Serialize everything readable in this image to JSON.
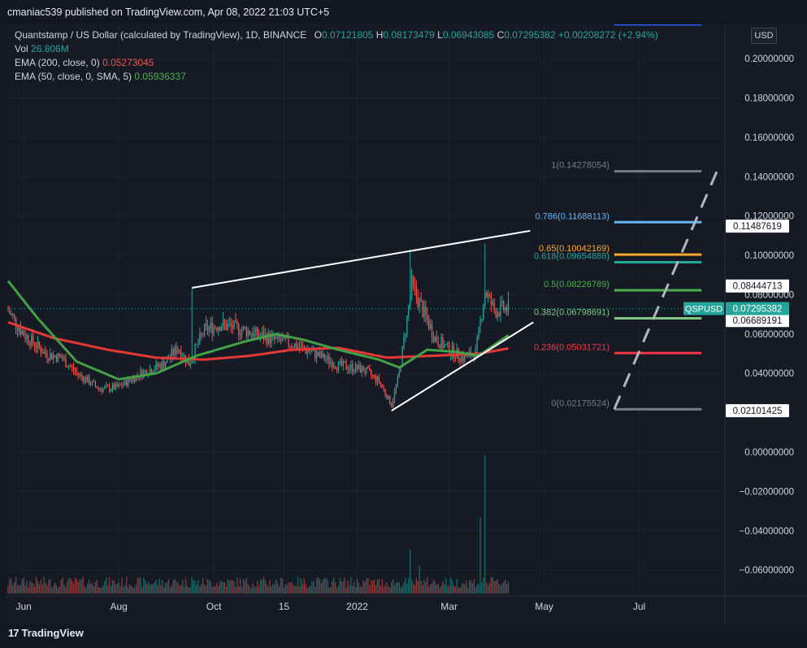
{
  "header": {
    "published": "cmaniac539 published on TradingView.com, Apr 08, 2022 21:03 UTC+5"
  },
  "legend": {
    "symbol": "Quantstamp / US Dollar (calculated by TradingView), 1D, BINANCE",
    "o_label": "O",
    "o": "0.07121805",
    "h_label": "H",
    "h": "0.08173479",
    "l_label": "L",
    "l": "0.06943085",
    "c_label": "C",
    "c": "0.07295382",
    "change": "+0.00208272 (+2.94%)",
    "vol_label": "Vol",
    "vol": "26.806M",
    "ema200_label": "EMA (200, close, 0)",
    "ema200": "0.05273045",
    "ema50_label": "EMA (50, close, 0, SMA, 5)",
    "ema50": "0.05936337"
  },
  "currency_button": "USD",
  "footer": {
    "brand": "TradingView",
    "mark": "17"
  },
  "chart_data": {
    "type": "candlestick",
    "symbol": "QSPUSD",
    "y_axis": {
      "ticks": [
        0.2,
        0.18,
        0.16,
        0.14,
        0.12,
        0.1,
        0.08,
        0.06,
        0.04,
        0.0,
        -0.02,
        -0.04,
        -0.06
      ],
      "tick_labels": [
        "0.20000000",
        "0.18000000",
        "0.16000000",
        "0.14000000",
        "0.12000000",
        "0.10000000",
        "0.08000000",
        "0.06000000",
        "0.04000000",
        "0.00000000",
        "−0.02000000",
        "−0.04000000",
        "−0.06000000"
      ],
      "ylim": [
        -0.075,
        0.215
      ]
    },
    "x_axis": {
      "tick_labels": [
        "Jun",
        "Aug",
        "Oct",
        "15",
        "2022",
        "Mar",
        "May",
        "Jul"
      ],
      "tick_dates": [
        "2021-06-01",
        "2021-08-01",
        "2021-10-01",
        "2021-11-15",
        "2022-01-01",
        "2022-03-01",
        "2022-05-01",
        "2022-07-01"
      ],
      "range": [
        "2021-05-22",
        "2022-08-25"
      ]
    },
    "price_label": {
      "name": "QSPUSD",
      "value": "0.07295382",
      "price": 0.07295382,
      "color": "#26a69a"
    },
    "axis_labels": [
      {
        "value": "0.11487619",
        "price": 0.11487619
      },
      {
        "value": "0.08444713",
        "price": 0.08444713
      },
      {
        "value": "0.06689191",
        "price": 0.06689191
      },
      {
        "value": "0.02101425",
        "price": 0.02101425
      }
    ],
    "fib_levels": [
      {
        "ratio": "1",
        "value": "0.14278054",
        "label": "1(0.14278054)",
        "price": 0.14278054,
        "color": "#787b86"
      },
      {
        "ratio": "0.786",
        "value": "0.11688113",
        "label": "0.786(0.11688113)",
        "price": 0.11688113,
        "color": "#64b5f6"
      },
      {
        "ratio": "0.65",
        "value": "0.10042169",
        "label": "0.65(0.10042169)",
        "price": 0.10042169,
        "color": "#ffa726"
      },
      {
        "ratio": "0.618",
        "value": "0.09654888",
        "label": "0.618(0.09654888)",
        "price": 0.09654888,
        "color": "#26a69a"
      },
      {
        "ratio": "0.5",
        "value": "0.08226789",
        "label": "0.5(0.08226789)",
        "price": 0.08226789,
        "color": "#4caf50"
      },
      {
        "ratio": "0.382",
        "value": "0.06798691",
        "label": "0.382(0.06798691)",
        "price": 0.06798691,
        "color": "#81c784"
      },
      {
        "ratio": "0.236",
        "value": "0.05031721",
        "label": "0.236(0.05031721)",
        "price": 0.05031721,
        "color": "#f23645"
      },
      {
        "ratio": "0",
        "value": "0.02175524",
        "label": "0(0.02175524)",
        "price": 0.02175524,
        "color": "#787b86"
      }
    ],
    "fib_top_extension": {
      "price": 0.2175,
      "color": "#2962ff"
    },
    "fib_range_dates": [
      "2022-06-15",
      "2022-08-10"
    ],
    "trendlines": [
      {
        "from": [
          "2021-09-17",
          0.0835
        ],
        "to": [
          "2022-04-22",
          0.1125
        ],
        "color": "#ffffff"
      },
      {
        "from": [
          "2022-01-23",
          0.021
        ],
        "to": [
          "2022-04-24",
          0.066
        ],
        "color": "#ffffff"
      }
    ],
    "projection_dashed": {
      "from": [
        "2022-06-15",
        0.0218
      ],
      "to": [
        "2022-08-20",
        0.143
      ],
      "color": "#b2b5be"
    },
    "ema200_anchors": [
      [
        "2021-05-22",
        0.066
      ],
      [
        "2021-06-20",
        0.058
      ],
      [
        "2021-07-25",
        0.052
      ],
      [
        "2021-08-25",
        0.048
      ],
      [
        "2021-09-25",
        0.047
      ],
      [
        "2021-10-25",
        0.049
      ],
      [
        "2021-11-20",
        0.052
      ],
      [
        "2021-12-20",
        0.053
      ],
      [
        "2022-01-20",
        0.048
      ],
      [
        "2022-02-20",
        0.049
      ],
      [
        "2022-03-20",
        0.05
      ],
      [
        "2022-04-08",
        0.0527
      ]
    ],
    "ema50_anchors": [
      [
        "2021-05-22",
        0.087
      ],
      [
        "2021-06-10",
        0.068
      ],
      [
        "2021-07-05",
        0.046
      ],
      [
        "2021-08-01",
        0.037
      ],
      [
        "2021-08-25",
        0.04
      ],
      [
        "2021-09-20",
        0.049
      ],
      [
        "2021-10-20",
        0.056
      ],
      [
        "2021-11-10",
        0.06
      ],
      [
        "2021-11-28",
        0.057
      ],
      [
        "2021-12-20",
        0.052
      ],
      [
        "2022-01-15",
        0.047
      ],
      [
        "2022-01-28",
        0.043
      ],
      [
        "2022-02-15",
        0.052
      ],
      [
        "2022-03-05",
        0.051
      ],
      [
        "2022-03-20",
        0.049
      ],
      [
        "2022-04-08",
        0.0594
      ]
    ],
    "price_path": [
      [
        "2021-05-22",
        0.072
      ],
      [
        "2021-06-01",
        0.06
      ],
      [
        "2021-06-15",
        0.05
      ],
      [
        "2021-06-25",
        0.048
      ],
      [
        "2021-07-05",
        0.04
      ],
      [
        "2021-07-20",
        0.032
      ],
      [
        "2021-08-01",
        0.033
      ],
      [
        "2021-08-15",
        0.04
      ],
      [
        "2021-08-30",
        0.045
      ],
      [
        "2021-09-08",
        0.053
      ],
      [
        "2021-09-15",
        0.045
      ],
      [
        "2021-09-25",
        0.062
      ],
      [
        "2021-10-05",
        0.065
      ],
      [
        "2021-10-20",
        0.062
      ],
      [
        "2021-11-05",
        0.058
      ],
      [
        "2021-11-20",
        0.055
      ],
      [
        "2021-12-05",
        0.05
      ],
      [
        "2021-12-20",
        0.044
      ],
      [
        "2022-01-05",
        0.042
      ],
      [
        "2022-01-15",
        0.036
      ],
      [
        "2022-01-23",
        0.024
      ],
      [
        "2022-01-28",
        0.04
      ],
      [
        "2022-02-05",
        0.085
      ],
      [
        "2022-02-12",
        0.072
      ],
      [
        "2022-02-20",
        0.058
      ],
      [
        "2022-03-01",
        0.052
      ],
      [
        "2022-03-10",
        0.048
      ],
      [
        "2022-03-18",
        0.05
      ],
      [
        "2022-03-24",
        0.082
      ],
      [
        "2022-03-30",
        0.072
      ],
      [
        "2022-04-08",
        0.073
      ]
    ],
    "spikes": [
      [
        "2021-09-17",
        0.0835
      ],
      [
        "2022-02-04",
        0.103
      ],
      [
        "2022-03-24",
        0.106
      ]
    ],
    "volume_spikes": [
      [
        "2022-02-04",
        0.32
      ],
      [
        "2022-02-10",
        0.2
      ],
      [
        "2022-03-24",
        1.0
      ],
      [
        "2022-03-21",
        0.55
      ],
      [
        "2021-09-17",
        0.12
      ],
      [
        "2022-04-06",
        0.1
      ]
    ]
  }
}
